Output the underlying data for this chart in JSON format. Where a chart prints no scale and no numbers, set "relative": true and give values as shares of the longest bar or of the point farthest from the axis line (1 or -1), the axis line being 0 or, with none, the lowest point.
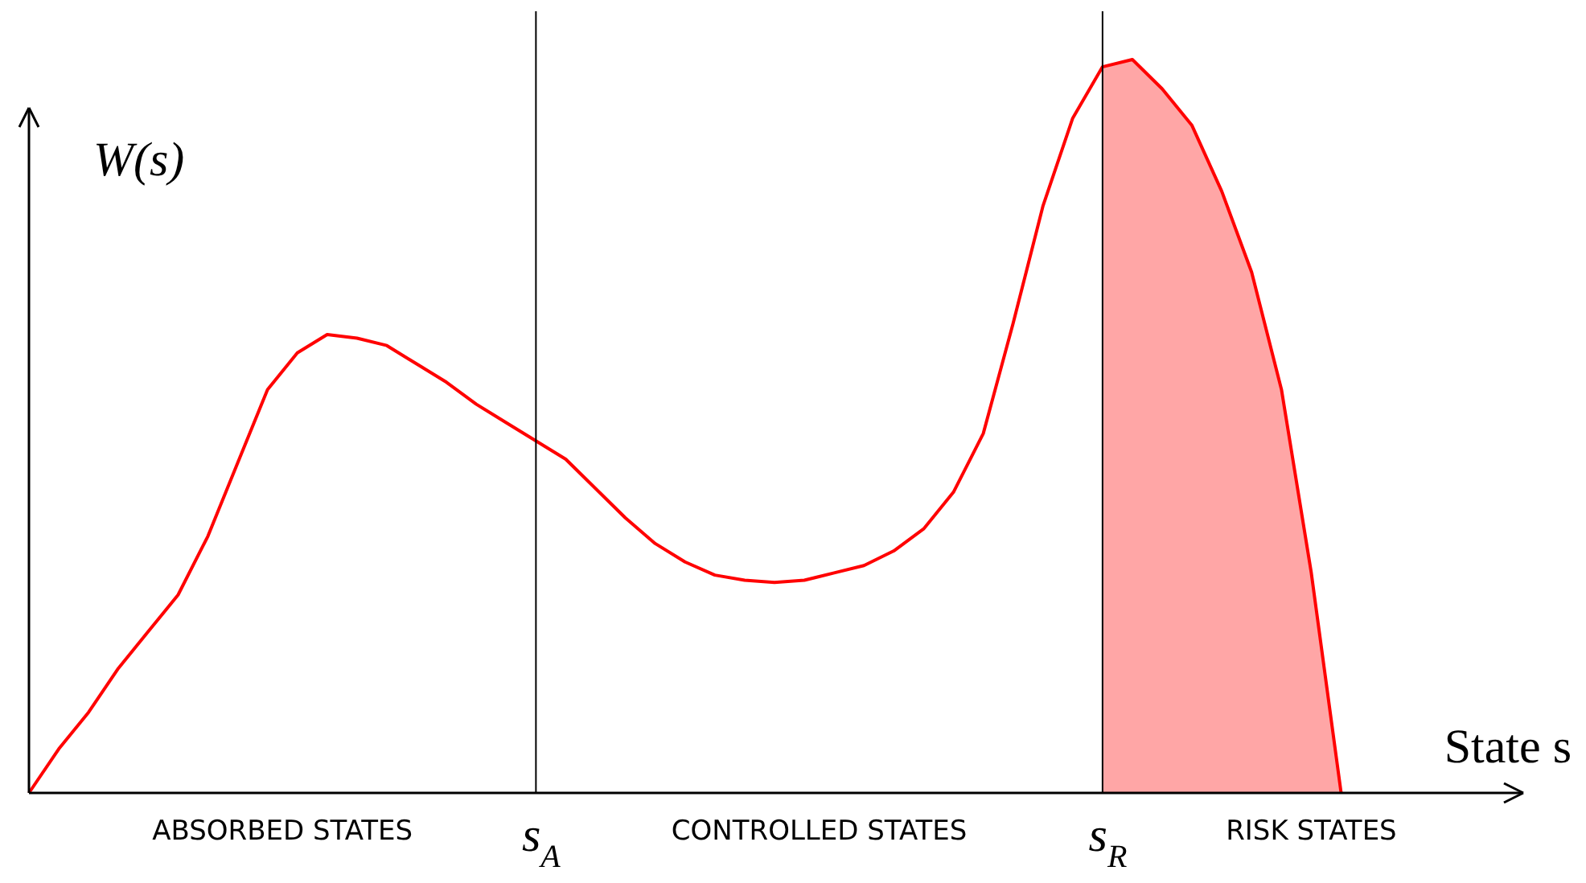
{
  "chart_data": {
    "type": "line",
    "relative": true,
    "xlabel": "State s",
    "ylabel": "W(s)",
    "categories": [
      null,
      null,
      null,
      null,
      null,
      null,
      null,
      null,
      null,
      null,
      null,
      null,
      null,
      null,
      null,
      null,
      null,
      "s$_{A}$",
      null,
      null,
      null,
      null,
      null,
      null,
      null,
      null,
      null,
      null,
      null,
      null,
      null,
      null,
      null,
      null,
      null,
      null,
      "s$_{R}$",
      null,
      null,
      null,
      null,
      null,
      null,
      null,
      null,
      null,
      null,
      null,
      null,
      null,
      null
    ],
    "series": [
      {
        "color": "#ff0000",
        "values": [
          0,
          0.06,
          0.11,
          0.17,
          0.22,
          0.27,
          0.35,
          0.45,
          0.55,
          0.6,
          0.625,
          0.62,
          0.61,
          0.585,
          0.56,
          0.53,
          0.505,
          0.48,
          0.455,
          0.415,
          0.375,
          0.34,
          0.315,
          0.297,
          0.29,
          0.287,
          0.29,
          0.3,
          0.31,
          0.33,
          0.36,
          0.41,
          0.49,
          0.64,
          0.8,
          0.92,
          0.99,
          1.0,
          0.96,
          0.91,
          0.82,
          0.71,
          0.55,
          0.3,
          0,
          null,
          null,
          null,
          null,
          null,
          null
        ]
      },
      {
        "type": "area",
        "color": "#ff0000",
        "values": [
          null,
          null,
          null,
          null,
          null,
          null,
          null,
          null,
          null,
          null,
          null,
          null,
          null,
          null,
          null,
          null,
          null,
          null,
          null,
          null,
          null,
          null,
          null,
          null,
          null,
          null,
          null,
          null,
          null,
          null,
          null,
          null,
          null,
          null,
          null,
          null,
          0.99,
          1.0,
          0.96,
          0.91,
          0.82,
          0.71,
          0.55,
          0.3,
          0,
          null,
          null,
          null,
          null,
          null,
          null
        ]
      }
    ],
    "ref_lines": [
      {
        "axis": "x",
        "value": "s$_{A}$"
      },
      {
        "axis": "x",
        "value": "s$_{R}$"
      }
    ],
    "annotations": [
      "ABSORBED STATES",
      "CONTROLLED STATES",
      "RISK STATES"
    ]
  }
}
